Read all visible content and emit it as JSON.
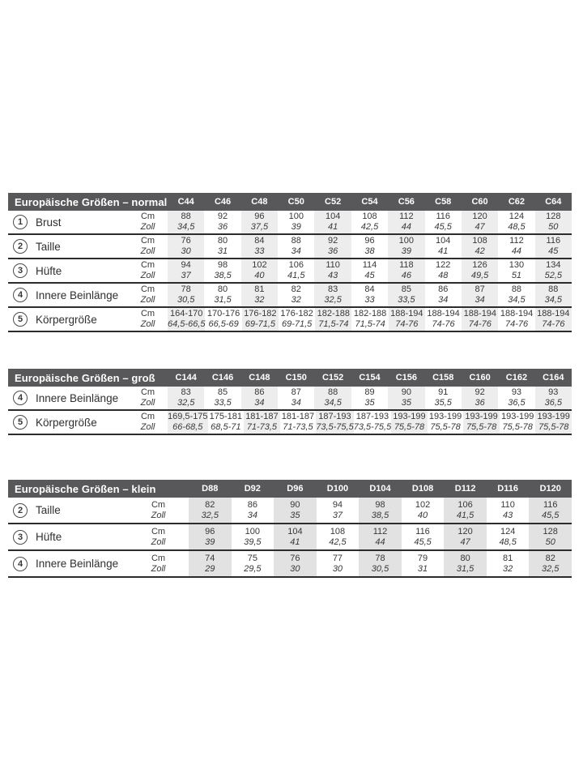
{
  "page": {
    "background": "#ffffff"
  },
  "colors": {
    "header_bg": "#58585a",
    "header_text": "#ffffff",
    "body_text": "#38383a",
    "separator_line": "#2c2c2c",
    "column_shade_normal": "#ededed",
    "column_shade_klein": "#e2e2e2"
  },
  "unit_labels": {
    "cm": "Cm",
    "zoll": "Zoll"
  },
  "tables": [
    {
      "title": "Europäische Größen – normal",
      "columns": [
        "C44",
        "C46",
        "C48",
        "C50",
        "C52",
        "C54",
        "C56",
        "C58",
        "C60",
        "C62",
        "C64"
      ],
      "rows": [
        {
          "num": "1",
          "label": "Brust",
          "cm": [
            "88",
            "92",
            "96",
            "100",
            "104",
            "108",
            "112",
            "116",
            "120",
            "124",
            "128"
          ],
          "zoll": [
            "34,5",
            "36",
            "37,5",
            "39",
            "41",
            "42,5",
            "44",
            "45,5",
            "47",
            "48,5",
            "50"
          ]
        },
        {
          "num": "2",
          "label": "Taille",
          "cm": [
            "76",
            "80",
            "84",
            "88",
            "92",
            "96",
            "100",
            "104",
            "108",
            "112",
            "116"
          ],
          "zoll": [
            "30",
            "31",
            "33",
            "34",
            "36",
            "38",
            "39",
            "41",
            "42",
            "44",
            "45"
          ]
        },
        {
          "num": "3",
          "label": "Hüfte",
          "cm": [
            "94",
            "98",
            "102",
            "106",
            "110",
            "114",
            "118",
            "122",
            "126",
            "130",
            "134"
          ],
          "zoll": [
            "37",
            "38,5",
            "40",
            "41,5",
            "43",
            "45",
            "46",
            "48",
            "49,5",
            "51",
            "52,5"
          ]
        },
        {
          "num": "4",
          "label": "Innere Beinlänge",
          "cm": [
            "78",
            "80",
            "81",
            "82",
            "83",
            "84",
            "85",
            "86",
            "87",
            "88",
            "88"
          ],
          "zoll": [
            "30,5",
            "31,5",
            "32",
            "32",
            "32,5",
            "33",
            "33,5",
            "34",
            "34",
            "34,5",
            "34,5"
          ]
        },
        {
          "num": "5",
          "label": "Körpergröße",
          "cm": [
            "164-170",
            "170-176",
            "176-182",
            "176-182",
            "182-188",
            "182-188",
            "188-194",
            "188-194",
            "188-194",
            "188-194",
            "188-194"
          ],
          "zoll": [
            "64,5-66,5",
            "66,5-69",
            "69-71,5",
            "69-71,5",
            "71,5-74",
            "71,5-74",
            "74-76",
            "74-76",
            "74-76",
            "74-76",
            "74-76"
          ]
        }
      ]
    },
    {
      "title": "Europäische Größen – groß",
      "columns": [
        "C144",
        "C146",
        "C148",
        "C150",
        "C152",
        "C154",
        "C156",
        "C158",
        "C160",
        "C162",
        "C164"
      ],
      "rows": [
        {
          "num": "4",
          "label": "Innere Beinlänge",
          "cm": [
            "83",
            "85",
            "86",
            "87",
            "88",
            "89",
            "90",
            "91",
            "92",
            "93",
            "93"
          ],
          "zoll": [
            "32,5",
            "33,5",
            "34",
            "34",
            "34,5",
            "35",
            "35",
            "35,5",
            "36",
            "36,5",
            "36,5"
          ]
        },
        {
          "num": "5",
          "label": "Körpergröße",
          "cm": [
            "169,5-175",
            "175-181",
            "181-187",
            "181-187",
            "187-193",
            "187-193",
            "193-199",
            "193-199",
            "193-199",
            "193-199",
            "193-199"
          ],
          "zoll": [
            "66-68,5",
            "68,5-71",
            "71-73,5",
            "71-73,5",
            "73,5-75,5",
            "73,5-75,5",
            "75,5-78",
            "75,5-78",
            "75,5-78",
            "75,5-78",
            "75,5-78"
          ]
        }
      ]
    },
    {
      "title": "Europäische Größen – klein",
      "columns": [
        "D88",
        "D92",
        "D96",
        "D100",
        "D104",
        "D108",
        "D112",
        "D116",
        "D120"
      ],
      "rows": [
        {
          "num": "2",
          "label": "Taille",
          "cm": [
            "82",
            "86",
            "90",
            "94",
            "98",
            "102",
            "106",
            "110",
            "116"
          ],
          "zoll": [
            "32,5",
            "34",
            "35",
            "37",
            "38,5",
            "40",
            "41,5",
            "43",
            "45,5"
          ]
        },
        {
          "num": "3",
          "label": "Hüfte",
          "cm": [
            "96",
            "100",
            "104",
            "108",
            "112",
            "116",
            "120",
            "124",
            "128"
          ],
          "zoll": [
            "39",
            "39,5",
            "41",
            "42,5",
            "44",
            "45,5",
            "47",
            "48,5",
            "50"
          ]
        },
        {
          "num": "4",
          "label": "Innere Beinlänge",
          "cm": [
            "74",
            "75",
            "76",
            "77",
            "78",
            "79",
            "80",
            "81",
            "82"
          ],
          "zoll": [
            "29",
            "29,5",
            "30",
            "30",
            "30,5",
            "31",
            "31,5",
            "32",
            "32,5"
          ]
        }
      ]
    }
  ]
}
